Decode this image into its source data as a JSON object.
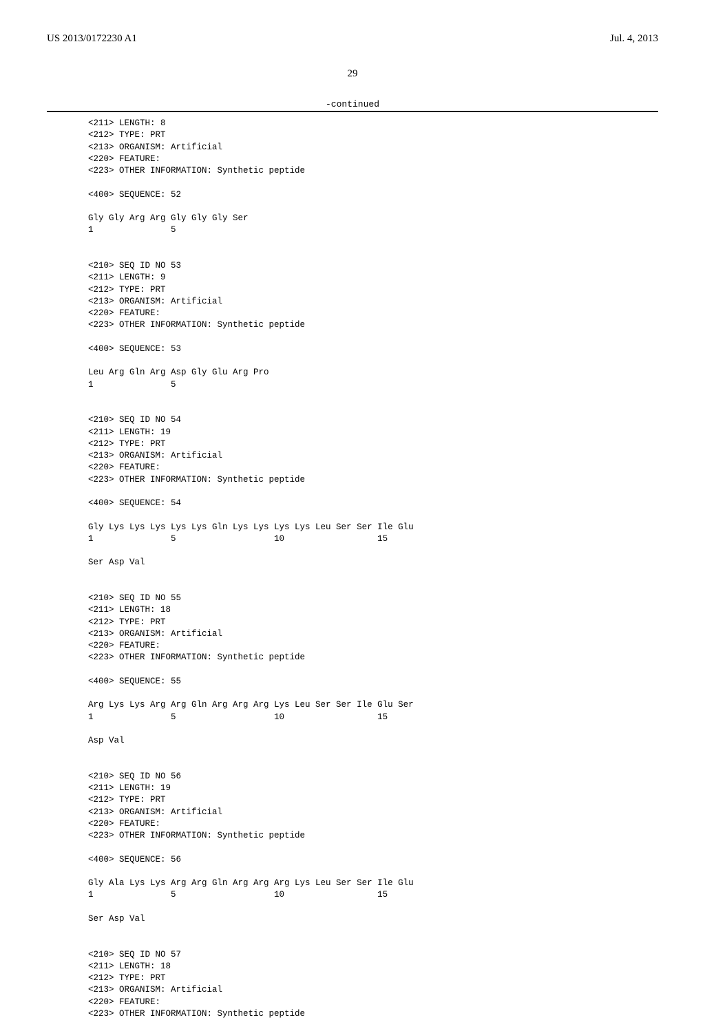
{
  "header": {
    "pub_number": "US 2013/0172230 A1",
    "date": "Jul. 4, 2013"
  },
  "page_number": "29",
  "continued_label": "-continued",
  "entries": [
    {
      "meta": [
        "<211> LENGTH: 8",
        "<212> TYPE: PRT",
        "<213> ORGANISM: Artificial",
        "<220> FEATURE:",
        "<223> OTHER INFORMATION: Synthetic peptide"
      ],
      "seq_header": "<400> SEQUENCE: 52",
      "seq_lines": [
        "Gly Gly Arg Arg Gly Gly Gly Ser",
        "1               5"
      ]
    },
    {
      "meta": [
        "<210> SEQ ID NO 53",
        "<211> LENGTH: 9",
        "<212> TYPE: PRT",
        "<213> ORGANISM: Artificial",
        "<220> FEATURE:",
        "<223> OTHER INFORMATION: Synthetic peptide"
      ],
      "seq_header": "<400> SEQUENCE: 53",
      "seq_lines": [
        "Leu Arg Gln Arg Asp Gly Glu Arg Pro",
        "1               5"
      ]
    },
    {
      "meta": [
        "<210> SEQ ID NO 54",
        "<211> LENGTH: 19",
        "<212> TYPE: PRT",
        "<213> ORGANISM: Artificial",
        "<220> FEATURE:",
        "<223> OTHER INFORMATION: Synthetic peptide"
      ],
      "seq_header": "<400> SEQUENCE: 54",
      "seq_lines": [
        "Gly Lys Lys Lys Lys Lys Gln Lys Lys Lys Lys Leu Ser Ser Ile Glu",
        "1               5                   10                  15",
        "",
        "Ser Asp Val"
      ]
    },
    {
      "meta": [
        "<210> SEQ ID NO 55",
        "<211> LENGTH: 18",
        "<212> TYPE: PRT",
        "<213> ORGANISM: Artificial",
        "<220> FEATURE:",
        "<223> OTHER INFORMATION: Synthetic peptide"
      ],
      "seq_header": "<400> SEQUENCE: 55",
      "seq_lines": [
        "Arg Lys Lys Arg Arg Gln Arg Arg Arg Lys Leu Ser Ser Ile Glu Ser",
        "1               5                   10                  15",
        "",
        "Asp Val"
      ]
    },
    {
      "meta": [
        "<210> SEQ ID NO 56",
        "<211> LENGTH: 19",
        "<212> TYPE: PRT",
        "<213> ORGANISM: Artificial",
        "<220> FEATURE:",
        "<223> OTHER INFORMATION: Synthetic peptide"
      ],
      "seq_header": "<400> SEQUENCE: 56",
      "seq_lines": [
        "Gly Ala Lys Lys Arg Arg Gln Arg Arg Arg Lys Leu Ser Ser Ile Glu",
        "1               5                   10                  15",
        "",
        "Ser Asp Val"
      ]
    },
    {
      "meta": [
        "<210> SEQ ID NO 57",
        "<211> LENGTH: 18",
        "<212> TYPE: PRT",
        "<213> ORGANISM: Artificial",
        "<220> FEATURE:",
        "<223> OTHER INFORMATION: Synthetic peptide"
      ],
      "seq_header": "",
      "seq_lines": []
    }
  ],
  "layout": {
    "text_color": "#000000",
    "background_color": "#ffffff",
    "mono_font": "Courier New",
    "serif_font": "Times New Roman",
    "header_fontsize": 15,
    "pageno_fontsize": 15,
    "mono_fontsize": 12.5,
    "line_height": 1.38,
    "gap_small_lines": 1,
    "gap_large_lines": 2
  }
}
